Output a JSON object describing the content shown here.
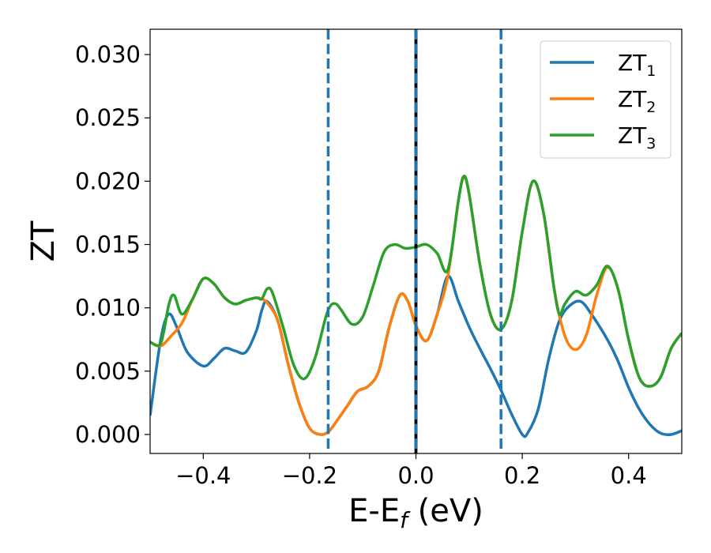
{
  "chart_data": {
    "type": "line",
    "xlabel": "E-E",
    "xlabel_sub": "f",
    "xlabel_unit": " (eV)",
    "ylabel": "ZT",
    "xlim": [
      -0.5,
      0.5
    ],
    "ylim": [
      -0.0015,
      0.032
    ],
    "xticks": [
      -0.4,
      -0.2,
      0.0,
      0.2,
      0.4
    ],
    "xtick_labels": [
      "−0.4",
      "−0.2",
      "0.0",
      "0.2",
      "0.4"
    ],
    "yticks": [
      0.0,
      0.005,
      0.01,
      0.015,
      0.02,
      0.025,
      0.03
    ],
    "ytick_labels": [
      "0.000",
      "0.005",
      "0.010",
      "0.015",
      "0.020",
      "0.025",
      "0.030"
    ],
    "grid": false,
    "legend_position": "top-right",
    "vlines": [
      {
        "x": -0.165,
        "style": "dashed",
        "color": "#1f77b4"
      },
      {
        "x": 0.0,
        "style": "solid",
        "color": "#000000"
      },
      {
        "x": 0.0,
        "style": "dashed",
        "color": "#1f77b4"
      },
      {
        "x": 0.16,
        "style": "dashed",
        "color": "#1f77b4"
      }
    ],
    "series": [
      {
        "name": "ZT",
        "name_sub": "1",
        "color": "#1f77b4",
        "points": [
          [
            -0.5,
            0.0015
          ],
          [
            -0.48,
            0.0075
          ],
          [
            -0.465,
            0.0095
          ],
          [
            -0.45,
            0.0085
          ],
          [
            -0.43,
            0.0065
          ],
          [
            -0.4,
            0.0054
          ],
          [
            -0.38,
            0.006
          ],
          [
            -0.36,
            0.0068
          ],
          [
            -0.34,
            0.0066
          ],
          [
            -0.32,
            0.0065
          ],
          [
            -0.3,
            0.0082
          ],
          [
            -0.29,
            0.0098
          ],
          [
            -0.28,
            0.0105
          ],
          [
            -0.26,
            0.009
          ],
          [
            -0.24,
            0.0055
          ],
          [
            -0.22,
            0.0025
          ],
          [
            -0.2,
            0.0005
          ],
          [
            -0.18,
            0.0
          ],
          [
            -0.165,
            0.0002
          ],
          [
            -0.15,
            0.001
          ],
          [
            -0.13,
            0.0022
          ],
          [
            -0.11,
            0.0034
          ],
          [
            -0.09,
            0.0038
          ],
          [
            -0.07,
            0.005
          ],
          [
            -0.05,
            0.0085
          ],
          [
            -0.03,
            0.011
          ],
          [
            -0.015,
            0.0105
          ],
          [
            0.0,
            0.0086
          ],
          [
            0.02,
            0.0074
          ],
          [
            0.04,
            0.0095
          ],
          [
            0.06,
            0.0125
          ],
          [
            0.08,
            0.0105
          ],
          [
            0.1,
            0.0085
          ],
          [
            0.12,
            0.0068
          ],
          [
            0.14,
            0.0052
          ],
          [
            0.16,
            0.0035
          ],
          [
            0.18,
            0.0016
          ],
          [
            0.2,
            0.0
          ],
          [
            0.21,
            0.0001
          ],
          [
            0.23,
            0.002
          ],
          [
            0.25,
            0.006
          ],
          [
            0.27,
            0.009
          ],
          [
            0.29,
            0.0102
          ],
          [
            0.31,
            0.0105
          ],
          [
            0.33,
            0.0095
          ],
          [
            0.36,
            0.0075
          ],
          [
            0.38,
            0.0058
          ],
          [
            0.4,
            0.0037
          ],
          [
            0.42,
            0.002
          ],
          [
            0.44,
            0.0008
          ],
          [
            0.46,
            0.0001
          ],
          [
            0.48,
            0.0
          ],
          [
            0.5,
            0.0003
          ]
        ]
      },
      {
        "name": "ZT",
        "name_sub": "2",
        "color": "#ff7f0e",
        "points": [
          [
            -0.5,
            0.0073
          ],
          [
            -0.48,
            0.007
          ],
          [
            -0.46,
            0.0078
          ],
          [
            -0.44,
            0.0088
          ],
          [
            -0.42,
            0.0107
          ],
          [
            -0.4,
            0.0123
          ],
          [
            -0.38,
            0.0119
          ],
          [
            -0.36,
            0.0108
          ],
          [
            -0.34,
            0.0103
          ],
          [
            -0.32,
            0.0106
          ],
          [
            -0.3,
            0.0108
          ],
          [
            -0.29,
            0.0107
          ],
          [
            -0.28,
            0.0104
          ],
          [
            -0.26,
            0.009
          ],
          [
            -0.24,
            0.0055
          ],
          [
            -0.22,
            0.0025
          ],
          [
            -0.2,
            0.0005
          ],
          [
            -0.18,
            0.0
          ],
          [
            -0.165,
            0.0002
          ],
          [
            -0.15,
            0.001
          ],
          [
            -0.13,
            0.0022
          ],
          [
            -0.11,
            0.0034
          ],
          [
            -0.09,
            0.0038
          ],
          [
            -0.07,
            0.005
          ],
          [
            -0.05,
            0.0085
          ],
          [
            -0.03,
            0.011
          ],
          [
            -0.015,
            0.0105
          ],
          [
            0.0,
            0.0086
          ],
          [
            0.02,
            0.0074
          ],
          [
            0.04,
            0.0095
          ],
          [
            0.06,
            0.0125
          ],
          [
            0.08,
            0.0185
          ],
          [
            0.09,
            0.0203
          ],
          [
            0.1,
            0.019
          ],
          [
            0.12,
            0.0135
          ],
          [
            0.14,
            0.0095
          ],
          [
            0.16,
            0.0083
          ],
          [
            0.18,
            0.0105
          ],
          [
            0.2,
            0.016
          ],
          [
            0.22,
            0.02
          ],
          [
            0.24,
            0.0175
          ],
          [
            0.26,
            0.0115
          ],
          [
            0.28,
            0.0078
          ],
          [
            0.3,
            0.0067
          ],
          [
            0.32,
            0.0078
          ],
          [
            0.34,
            0.011
          ],
          [
            0.36,
            0.0132
          ],
          [
            0.38,
            0.0115
          ],
          [
            0.4,
            0.0075
          ],
          [
            0.42,
            0.0045
          ],
          [
            0.44,
            0.0038
          ],
          [
            0.46,
            0.0045
          ],
          [
            0.48,
            0.0068
          ],
          [
            0.5,
            0.008
          ]
        ]
      },
      {
        "name": "ZT",
        "name_sub": "3",
        "color": "#2ca02c",
        "points": [
          [
            -0.5,
            0.0073
          ],
          [
            -0.48,
            0.0072
          ],
          [
            -0.465,
            0.0102
          ],
          [
            -0.455,
            0.011
          ],
          [
            -0.44,
            0.0095
          ],
          [
            -0.42,
            0.0107
          ],
          [
            -0.4,
            0.0123
          ],
          [
            -0.38,
            0.0119
          ],
          [
            -0.36,
            0.0108
          ],
          [
            -0.34,
            0.0103
          ],
          [
            -0.32,
            0.0106
          ],
          [
            -0.3,
            0.0108
          ],
          [
            -0.29,
            0.0107
          ],
          [
            -0.28,
            0.0115
          ],
          [
            -0.27,
            0.0112
          ],
          [
            -0.25,
            0.0085
          ],
          [
            -0.23,
            0.0055
          ],
          [
            -0.21,
            0.0044
          ],
          [
            -0.19,
            0.006
          ],
          [
            -0.17,
            0.0092
          ],
          [
            -0.16,
            0.0102
          ],
          [
            -0.15,
            0.0103
          ],
          [
            -0.14,
            0.0098
          ],
          [
            -0.12,
            0.0087
          ],
          [
            -0.1,
            0.0093
          ],
          [
            -0.08,
            0.0118
          ],
          [
            -0.06,
            0.0144
          ],
          [
            -0.04,
            0.015
          ],
          [
            -0.02,
            0.0147
          ],
          [
            0.0,
            0.0148
          ],
          [
            0.02,
            0.015
          ],
          [
            0.04,
            0.0143
          ],
          [
            0.06,
            0.013
          ],
          [
            0.08,
            0.0185
          ],
          [
            0.09,
            0.0204
          ],
          [
            0.1,
            0.019
          ],
          [
            0.12,
            0.0135
          ],
          [
            0.14,
            0.0095
          ],
          [
            0.16,
            0.0083
          ],
          [
            0.18,
            0.0105
          ],
          [
            0.2,
            0.016
          ],
          [
            0.22,
            0.02
          ],
          [
            0.24,
            0.0175
          ],
          [
            0.26,
            0.0115
          ],
          [
            0.27,
            0.0095
          ],
          [
            0.28,
            0.0103
          ],
          [
            0.3,
            0.0113
          ],
          [
            0.32,
            0.011
          ],
          [
            0.34,
            0.0118
          ],
          [
            0.36,
            0.0133
          ],
          [
            0.38,
            0.0115
          ],
          [
            0.4,
            0.0075
          ],
          [
            0.42,
            0.0045
          ],
          [
            0.44,
            0.0038
          ],
          [
            0.46,
            0.0045
          ],
          [
            0.48,
            0.0068
          ],
          [
            0.5,
            0.008
          ]
        ]
      }
    ]
  }
}
